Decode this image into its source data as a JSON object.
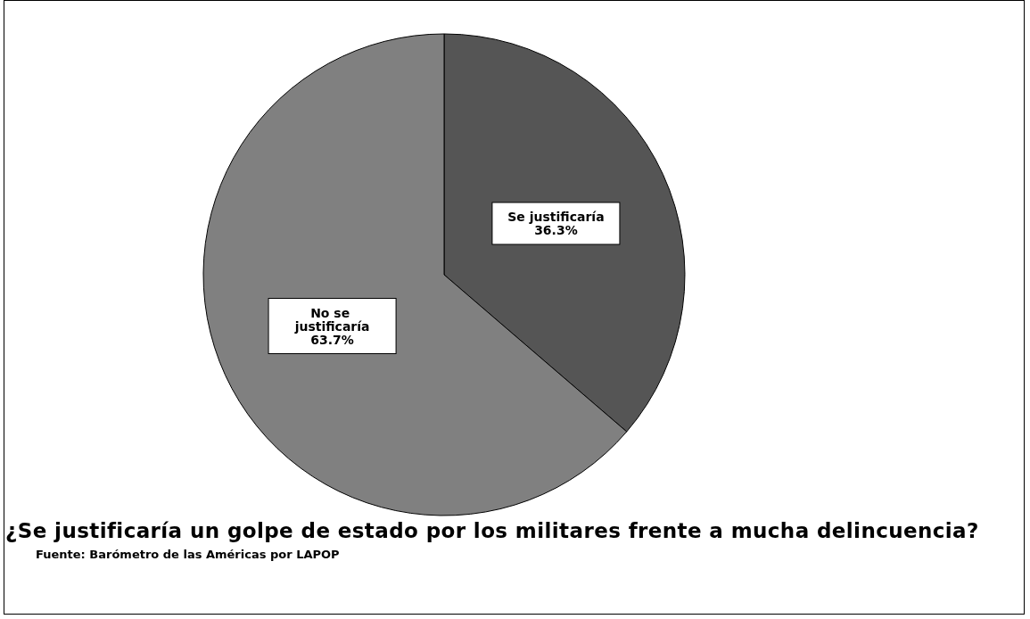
{
  "chart_data": {
    "type": "pie",
    "title": "¿Se justificaría un golpe de estado por los militares frente a mucha delincuencia?",
    "categories": [
      "Se justificaría",
      "No se justificaría"
    ],
    "values": [
      36.3,
      63.7
    ],
    "colors": [
      "#555555",
      "#808080"
    ],
    "value_labels": [
      "36.3%",
      "63.7%"
    ],
    "legend": false,
    "annotations": [
      "Fuente: Barómetro de las Américas por LAPOP"
    ]
  }
}
